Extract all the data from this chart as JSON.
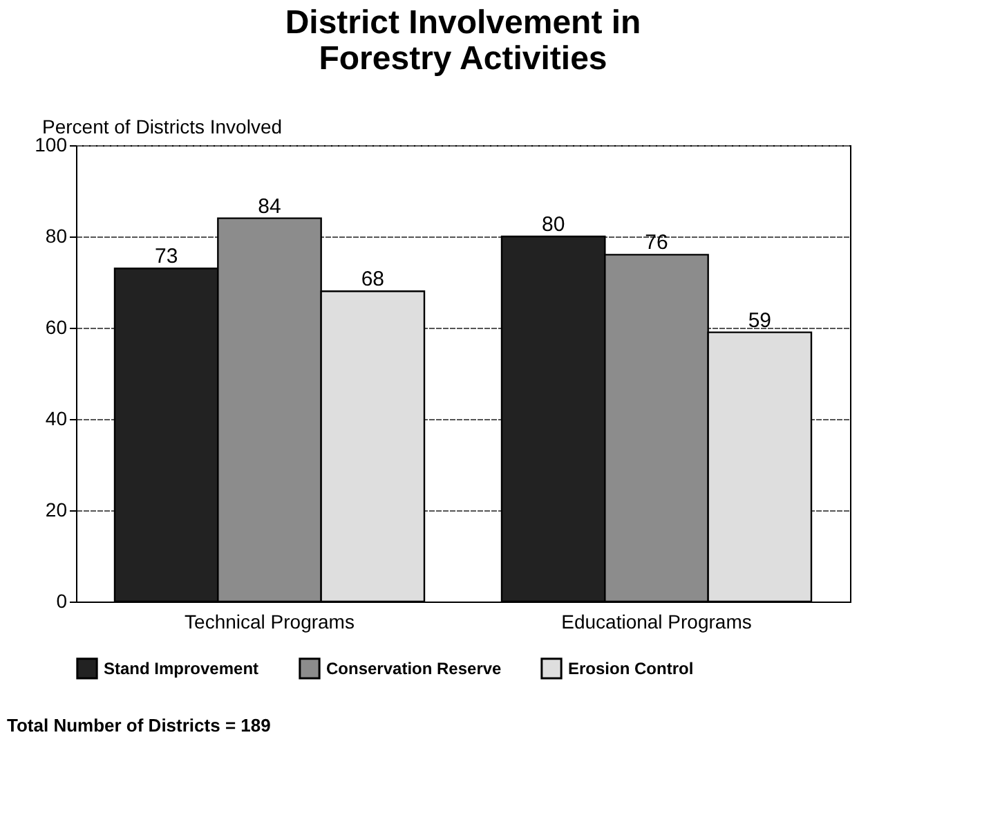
{
  "chart_data": {
    "type": "bar",
    "title": "District Involvement in\nForestry Activities",
    "ylabel": "Percent of Districts Involved",
    "categories": [
      "Technical Programs",
      "Educational Programs"
    ],
    "series": [
      {
        "name": "Stand Improvement",
        "color": "#222222",
        "values": [
          73,
          80
        ]
      },
      {
        "name": "Conservation Reserve",
        "color": "#8c8c8c",
        "values": [
          84,
          76
        ]
      },
      {
        "name": "Erosion Control",
        "color": "#dedede",
        "values": [
          68,
          59
        ]
      }
    ],
    "ylim": [
      0,
      100
    ],
    "yticks": [
      0,
      20,
      40,
      60,
      80,
      100
    ],
    "grid": "y",
    "legend": "bottom",
    "data_labels": true,
    "annotations": [
      "Total Number of Districts = 189"
    ]
  }
}
